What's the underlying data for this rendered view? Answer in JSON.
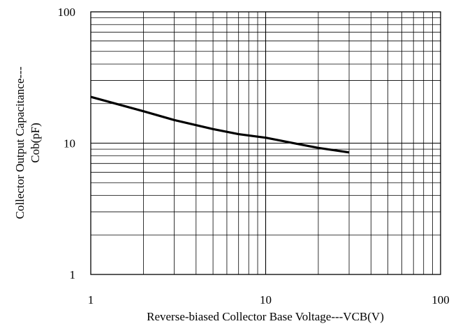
{
  "chart_data": {
    "type": "line",
    "title": "",
    "xlabel": "Reverse-biased Collector Base Voltage---VCB(V)",
    "ylabel_lines": [
      "Collector Output Capacitance---",
      "Cob(pF)"
    ],
    "x_scale": "log",
    "y_scale": "log",
    "xlim": [
      1,
      100
    ],
    "ylim": [
      1,
      100
    ],
    "grid": true,
    "x_ticks": [
      {
        "value": 1,
        "label": "1"
      },
      {
        "value": 10,
        "label": "10"
      },
      {
        "value": 100,
        "label": "100"
      }
    ],
    "y_ticks": [
      {
        "value": 1,
        "label": "1"
      },
      {
        "value": 10,
        "label": "10"
      },
      {
        "value": 100,
        "label": "100"
      }
    ],
    "series": [
      {
        "color": "#000000",
        "x": [
          1,
          2,
          3,
          5,
          7,
          10,
          15,
          20,
          30
        ],
        "y": [
          22.5,
          17.5,
          15.0,
          12.8,
          11.7,
          11.0,
          9.9,
          9.2,
          8.5
        ]
      }
    ]
  }
}
